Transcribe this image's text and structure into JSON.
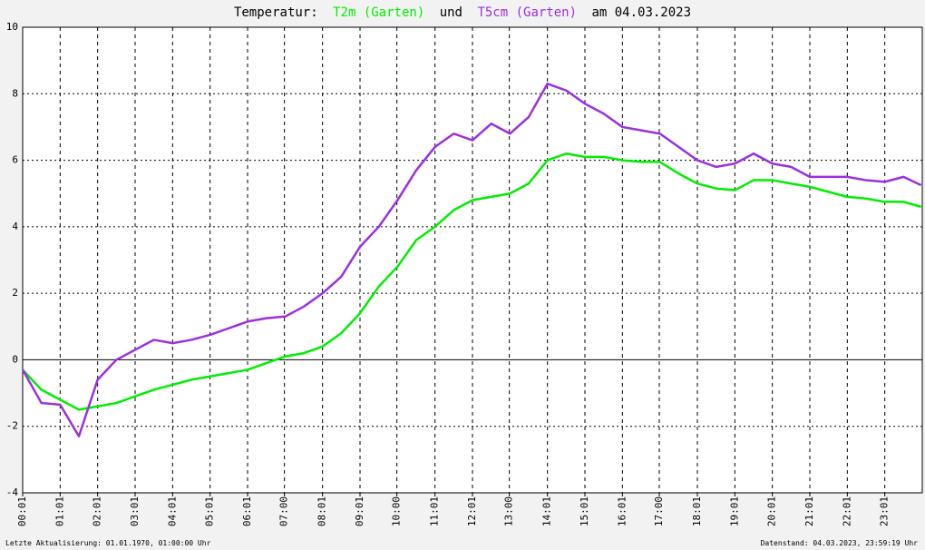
{
  "chart_data": {
    "type": "line",
    "title_parts": [
      "Temperatur:",
      "und",
      "am 04.03.2023"
    ],
    "footer_left": "Letzte Aktualisierung: 01.01.1970, 01:00:00 Uhr",
    "footer_right": "Datenstand: 04.03.2023, 23:59:19 Uhr",
    "x": [
      1,
      31,
      61,
      91,
      121,
      151,
      181,
      211,
      241,
      271,
      301,
      331,
      361,
      391,
      421,
      451,
      481,
      511,
      541,
      571,
      601,
      631,
      661,
      691,
      721,
      751,
      781,
      811,
      841,
      871,
      901,
      931,
      961,
      991,
      1021,
      1051,
      1081,
      1111,
      1141,
      1171,
      1201,
      1231,
      1261,
      1291,
      1321,
      1351,
      1381,
      1411,
      1439
    ],
    "series": [
      {
        "name": "T2m (Garten)",
        "color": "#00ee00",
        "values": [
          -0.3,
          -0.9,
          -1.2,
          -1.5,
          -1.4,
          -1.3,
          -1.1,
          -0.9,
          -0.75,
          -0.6,
          -0.5,
          -0.4,
          -0.3,
          -0.1,
          0.1,
          0.2,
          0.4,
          0.8,
          1.4,
          2.2,
          2.8,
          3.6,
          4.0,
          4.5,
          4.8,
          4.9,
          5.0,
          5.3,
          6.0,
          6.2,
          6.1,
          6.1,
          6.0,
          5.95,
          5.95,
          5.6,
          5.3,
          5.15,
          5.1,
          5.4,
          5.4,
          5.3,
          5.2,
          5.05,
          4.9,
          4.85,
          4.75,
          4.75,
          4.6
        ]
      },
      {
        "name": "T5cm (Garten)",
        "color": "#9a30e0",
        "values": [
          -0.3,
          -1.3,
          -1.35,
          -2.3,
          -0.6,
          0.0,
          0.3,
          0.6,
          0.5,
          0.6,
          0.75,
          0.95,
          1.15,
          1.25,
          1.3,
          1.6,
          2.0,
          2.5,
          3.4,
          4.0,
          4.8,
          5.7,
          6.4,
          6.8,
          6.6,
          7.1,
          6.8,
          7.3,
          8.3,
          8.1,
          7.7,
          7.4,
          7.0,
          6.9,
          6.8,
          6.4,
          6.0,
          5.8,
          5.9,
          6.2,
          5.9,
          5.8,
          5.5,
          5.5,
          5.5,
          5.4,
          5.35,
          5.5,
          5.25
        ]
      }
    ],
    "xlim": [
      1,
      1441
    ],
    "xticks": [
      {
        "value": 1,
        "label": "00:01"
      },
      {
        "value": 61,
        "label": "01:01"
      },
      {
        "value": 121,
        "label": "02:01"
      },
      {
        "value": 181,
        "label": "03:01"
      },
      {
        "value": 241,
        "label": "04:01"
      },
      {
        "value": 301,
        "label": "05:01"
      },
      {
        "value": 361,
        "label": "06:01"
      },
      {
        "value": 420,
        "label": "07:00"
      },
      {
        "value": 481,
        "label": "08:01"
      },
      {
        "value": 541,
        "label": "09:01"
      },
      {
        "value": 600,
        "label": "10:00"
      },
      {
        "value": 661,
        "label": "11:01"
      },
      {
        "value": 721,
        "label": "12:01"
      },
      {
        "value": 780,
        "label": "13:00"
      },
      {
        "value": 841,
        "label": "14:01"
      },
      {
        "value": 901,
        "label": "15:01"
      },
      {
        "value": 961,
        "label": "16:01"
      },
      {
        "value": 1020,
        "label": "17:00"
      },
      {
        "value": 1081,
        "label": "18:01"
      },
      {
        "value": 1141,
        "label": "19:01"
      },
      {
        "value": 1201,
        "label": "20:01"
      },
      {
        "value": 1261,
        "label": "21:01"
      },
      {
        "value": 1321,
        "label": "22:01"
      },
      {
        "value": 1381,
        "label": "23:01"
      }
    ],
    "ylim": [
      -4,
      10
    ],
    "yticks": [
      -4,
      -2,
      0,
      2,
      4,
      6,
      8,
      10
    ],
    "grid": true
  }
}
